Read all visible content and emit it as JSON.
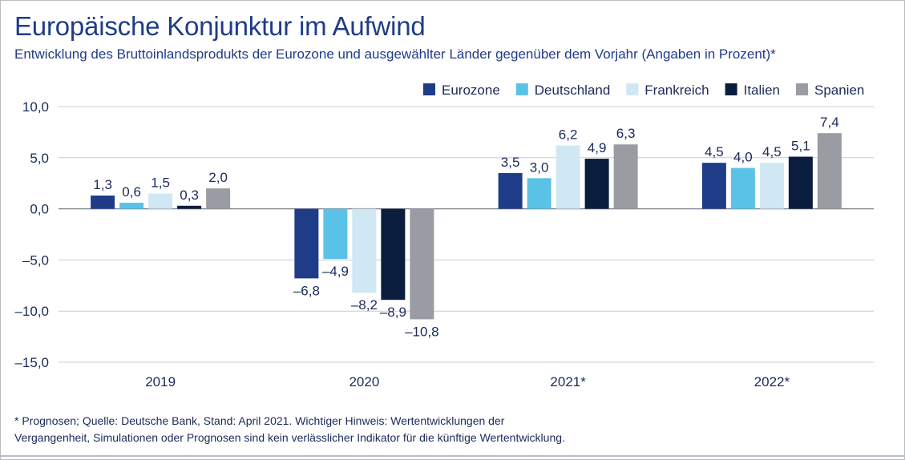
{
  "title": "Europäische Konjunktur im Aufwind",
  "subtitle": "Entwicklung des Bruttoinlandsprodukts der Eurozone und ausgewählter Länder gegenüber dem Vorjahr (Angaben in Prozent)*",
  "footnote": {
    "line1": "* Prognosen; Quelle: Deutsche Bank, Stand: April 2021. Wichtiger Hinweis: Wertentwicklungen der",
    "line2": "Vergangenheit, Simulationen oder Prognosen sind kein verlässlicher Indikator für die künftige Wertentwicklung."
  },
  "chart_data": {
    "type": "bar",
    "title": "Europäische Konjunktur im Aufwind",
    "subtitle": "Entwicklung des Bruttoinlandsprodukts der Eurozone und ausgewählter Länder gegenüber dem Vorjahr (Angaben in Prozent)*",
    "xlabel": "",
    "ylabel": "",
    "categories": [
      "2019",
      "2020",
      "2021*",
      "2022*"
    ],
    "ylim": [
      -15,
      10
    ],
    "yticks": [
      10,
      5,
      0,
      -5,
      -10,
      -15
    ],
    "ytick_labels": [
      "10,0",
      "5,0",
      "0,0",
      "–5,0",
      "–10,0",
      "–15,0"
    ],
    "grid": "horizontal",
    "legend_position": "top-right",
    "series": [
      {
        "name": "Eurozone",
        "color": "#1f3c88",
        "values": [
          1.3,
          -6.8,
          3.5,
          4.5
        ],
        "labels": [
          "1,3",
          "–6,8",
          "3,5",
          "4,5"
        ]
      },
      {
        "name": "Deutschland",
        "color": "#5bc2e7",
        "values": [
          0.6,
          -4.9,
          3.0,
          4.0
        ],
        "labels": [
          "0,6",
          "–4,9",
          "3,0",
          "4,0"
        ]
      },
      {
        "name": "Frankreich",
        "color": "#cfe8f3",
        "values": [
          1.5,
          -8.2,
          6.2,
          4.5
        ],
        "labels": [
          "1,5",
          "–8,2",
          "6,2",
          "4,5"
        ]
      },
      {
        "name": "Italien",
        "color": "#0b1d3e",
        "values": [
          0.3,
          -8.9,
          4.9,
          5.1
        ],
        "labels": [
          "0,3",
          "–8,9",
          "4,9",
          "5,1"
        ]
      },
      {
        "name": "Spanien",
        "color": "#9a9ca3",
        "values": [
          2.0,
          -10.8,
          6.3,
          7.4
        ],
        "labels": [
          "2,0",
          "–10,8",
          "6,3",
          "7,4"
        ]
      }
    ]
  }
}
